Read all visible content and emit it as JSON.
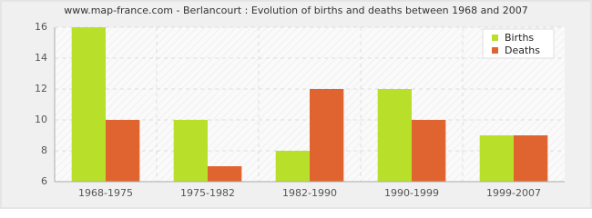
{
  "chart_data": {
    "type": "bar",
    "title": "www.map-france.com - Berlancourt : Evolution of births and deaths between 1968 and 2007",
    "categories": [
      "1968-1975",
      "1975-1982",
      "1982-1990",
      "1990-1999",
      "1999-2007"
    ],
    "series": [
      {
        "name": "Births",
        "color": "#b8e02b",
        "values": [
          16,
          10,
          8,
          12,
          9
        ]
      },
      {
        "name": "Deaths",
        "color": "#e06430",
        "values": [
          10,
          7,
          12,
          10,
          9
        ]
      }
    ],
    "ylim": [
      6,
      16
    ],
    "yticks": [
      6,
      8,
      10,
      12,
      14,
      16
    ],
    "grid": true,
    "legend": "top-right"
  }
}
